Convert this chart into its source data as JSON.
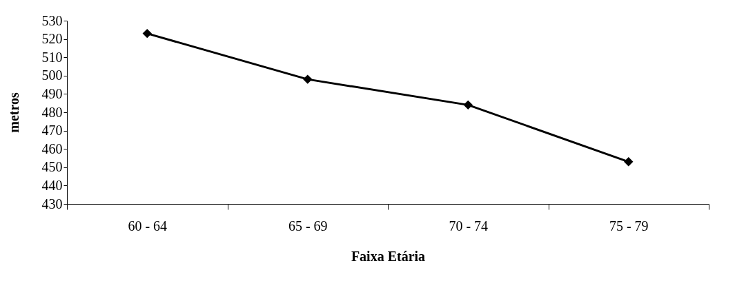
{
  "chart_data": {
    "type": "line",
    "xlabel": "Faixa Etária",
    "ylabel": "metros",
    "categories": [
      "60 - 64",
      "65 - 69",
      "70 - 74",
      "75 - 79"
    ],
    "series": [
      {
        "color": "#000000",
        "values": [
          523,
          498,
          484,
          453
        ]
      }
    ],
    "ylim": [
      430,
      530
    ],
    "yticks": [
      430,
      440,
      450,
      460,
      470,
      480,
      490,
      500,
      510,
      520,
      530
    ],
    "grid": false,
    "marker": "diamond",
    "line_style": "solid"
  }
}
